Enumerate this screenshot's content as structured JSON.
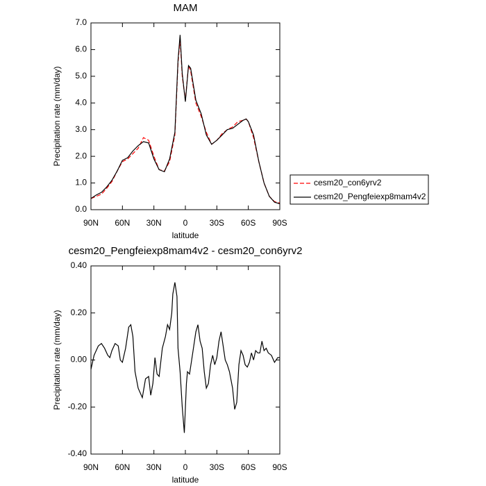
{
  "chart_data": [
    {
      "type": "line",
      "title": "MAM",
      "ylabel": "Precipitation rate (mm/day)",
      "xlabel": "latitude",
      "x": [
        90,
        85,
        80,
        75,
        70,
        65,
        60,
        55,
        50,
        45,
        40,
        35,
        30,
        25,
        20,
        15,
        10,
        7,
        5,
        3,
        0,
        -3,
        -5,
        -10,
        -15,
        -20,
        -25,
        -30,
        -35,
        -40,
        -45,
        -50,
        -55,
        -58,
        -60,
        -65,
        -70,
        -75,
        -80,
        -85,
        -90
      ],
      "series": [
        {
          "name": "cesm20_con6yrv2",
          "color": "#ff0000",
          "line_style": "dashed",
          "values": [
            0.42,
            0.5,
            0.58,
            0.8,
            1.05,
            1.45,
            1.8,
            1.9,
            2.1,
            2.3,
            2.7,
            2.6,
            2.0,
            1.5,
            1.45,
            1.8,
            2.8,
            5.5,
            6.4,
            5.0,
            4.1,
            5.4,
            5.2,
            4.0,
            3.5,
            2.9,
            2.45,
            2.6,
            2.85,
            3.0,
            3.1,
            3.3,
            3.35,
            3.4,
            3.3,
            2.7,
            1.8,
            1.0,
            0.5,
            0.3,
            0.25
          ]
        },
        {
          "name": "cesm20_Pengfeiexp8mam4v2",
          "color": "#000000",
          "line_style": "solid",
          "values": [
            0.42,
            0.55,
            0.65,
            0.85,
            1.1,
            1.45,
            1.85,
            1.95,
            2.2,
            2.4,
            2.55,
            2.5,
            1.9,
            1.5,
            1.42,
            1.9,
            2.9,
            5.6,
            6.55,
            5.1,
            4.05,
            5.4,
            5.3,
            4.1,
            3.6,
            2.8,
            2.45,
            2.6,
            2.8,
            3.0,
            3.05,
            3.2,
            3.35,
            3.4,
            3.3,
            2.8,
            1.8,
            1.0,
            0.5,
            0.28,
            0.22
          ]
        }
      ],
      "xlim": [
        90,
        -90
      ],
      "xticks": [
        {
          "value": 90,
          "label": "90N"
        },
        {
          "value": 60,
          "label": "60N"
        },
        {
          "value": 30,
          "label": "30N"
        },
        0,
        {
          "value": -30,
          "label": "30S"
        },
        {
          "value": -60,
          "label": "60S"
        },
        {
          "value": -90,
          "label": "90S"
        }
      ],
      "ylim": [
        0,
        7
      ],
      "yticks": [
        {
          "value": 0,
          "label": "0.0"
        },
        {
          "value": 1,
          "label": "1.0"
        },
        {
          "value": 2,
          "label": "2.0"
        },
        {
          "value": 3,
          "label": "3.0"
        },
        {
          "value": 4,
          "label": "4.0"
        },
        {
          "value": 5,
          "label": "5.0"
        },
        {
          "value": 6,
          "label": "6.0"
        },
        {
          "value": 7,
          "label": "7.0"
        }
      ],
      "legend": "right"
    },
    {
      "type": "line",
      "title": "cesm20_Pengfeiexp8mam4v2 - cesm20_con6yrv2",
      "ylabel": "Precipitation rate (mm/day)",
      "xlabel": "latitude",
      "x": [
        90,
        87,
        83,
        80,
        77,
        74,
        72,
        70,
        67,
        64,
        62,
        60,
        57,
        54,
        52,
        50,
        48,
        45,
        41,
        38,
        35,
        33,
        31,
        29,
        27,
        25,
        22,
        19,
        17,
        15,
        13,
        12,
        10,
        8,
        7,
        5,
        3,
        1,
        -1,
        -2,
        -4,
        -7,
        -10,
        -12,
        -14,
        -16,
        -18,
        -20,
        -22,
        -24,
        -26,
        -28,
        -30,
        -32,
        -34,
        -36,
        -38,
        -40,
        -42,
        -45,
        -47,
        -49,
        -51,
        -53,
        -55,
        -57,
        -59,
        -61,
        -63,
        -65,
        -67,
        -69,
        -71,
        -73,
        -75,
        -77,
        -79,
        -82,
        -85,
        -88,
        -90
      ],
      "values": [
        -0.04,
        0.02,
        0.06,
        0.07,
        0.05,
        0.02,
        0.01,
        0.04,
        0.07,
        0.06,
        0.0,
        -0.01,
        0.05,
        0.14,
        0.15,
        0.1,
        -0.05,
        -0.12,
        -0.16,
        -0.08,
        -0.07,
        -0.15,
        -0.1,
        0.01,
        -0.06,
        -0.07,
        0.05,
        0.1,
        0.15,
        0.13,
        0.2,
        0.28,
        0.33,
        0.27,
        0.05,
        -0.05,
        -0.2,
        -0.31,
        -0.1,
        -0.05,
        -0.06,
        0.03,
        0.12,
        0.15,
        0.08,
        0.05,
        -0.05,
        -0.12,
        -0.1,
        -0.02,
        0.02,
        -0.02,
        0.01,
        0.08,
        0.12,
        0.06,
        0.0,
        -0.02,
        -0.05,
        -0.12,
        -0.21,
        -0.18,
        -0.02,
        0.04,
        0.02,
        -0.02,
        -0.03,
        -0.01,
        0.03,
        0.0,
        0.04,
        0.03,
        0.03,
        0.08,
        0.04,
        0.05,
        0.03,
        0.02,
        -0.01,
        0.01,
        0.01
      ],
      "color": "#000000",
      "xlim": [
        90,
        -90
      ],
      "xticks": [
        {
          "value": 90,
          "label": "90N"
        },
        {
          "value": 60,
          "label": "60N"
        },
        {
          "value": 30,
          "label": "30N"
        },
        0,
        {
          "value": -30,
          "label": "30S"
        },
        {
          "value": -60,
          "label": "60S"
        },
        {
          "value": -90,
          "label": "90S"
        }
      ],
      "ylim": [
        -0.4,
        0.4
      ],
      "yticks": [
        {
          "value": -0.4,
          "label": "-0.40"
        },
        {
          "value": -0.2,
          "label": "-0.20"
        },
        {
          "value": 0,
          "label": "0.00"
        },
        {
          "value": 0.2,
          "label": "0.20"
        },
        {
          "value": 0.4,
          "label": "0.40"
        }
      ]
    }
  ]
}
